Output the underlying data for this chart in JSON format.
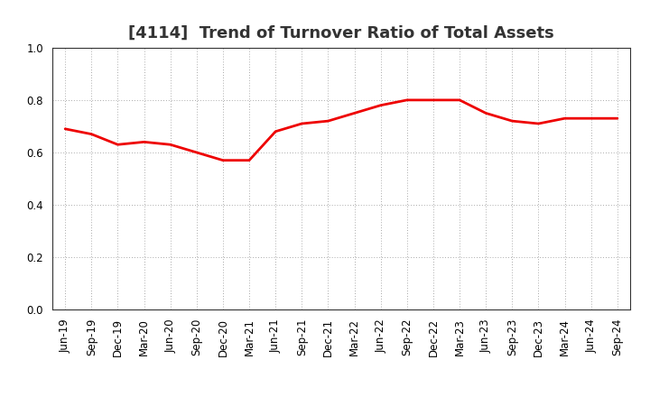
{
  "title": "[4114]  Trend of Turnover Ratio of Total Assets",
  "x_labels": [
    "Jun-19",
    "Sep-19",
    "Dec-19",
    "Mar-20",
    "Jun-20",
    "Sep-20",
    "Dec-20",
    "Mar-21",
    "Jun-21",
    "Sep-21",
    "Dec-21",
    "Mar-22",
    "Jun-22",
    "Sep-22",
    "Dec-22",
    "Mar-23",
    "Jun-23",
    "Sep-23",
    "Dec-23",
    "Mar-24",
    "Jun-24",
    "Sep-24"
  ],
  "y_values": [
    0.69,
    0.67,
    0.63,
    0.64,
    0.63,
    0.6,
    0.57,
    0.57,
    0.68,
    0.71,
    0.72,
    0.75,
    0.78,
    0.8,
    0.8,
    0.8,
    0.75,
    0.72,
    0.71,
    0.73,
    0.73,
    0.73
  ],
  "line_color": "#ee0000",
  "line_width": 2.0,
  "ylim": [
    0.0,
    1.0
  ],
  "yticks": [
    0.0,
    0.2,
    0.4,
    0.6,
    0.8,
    1.0
  ],
  "grid_color": "#aaaaaa",
  "background_color": "#ffffff",
  "title_fontsize": 13,
  "tick_fontsize": 8.5,
  "title_color": "#333333"
}
